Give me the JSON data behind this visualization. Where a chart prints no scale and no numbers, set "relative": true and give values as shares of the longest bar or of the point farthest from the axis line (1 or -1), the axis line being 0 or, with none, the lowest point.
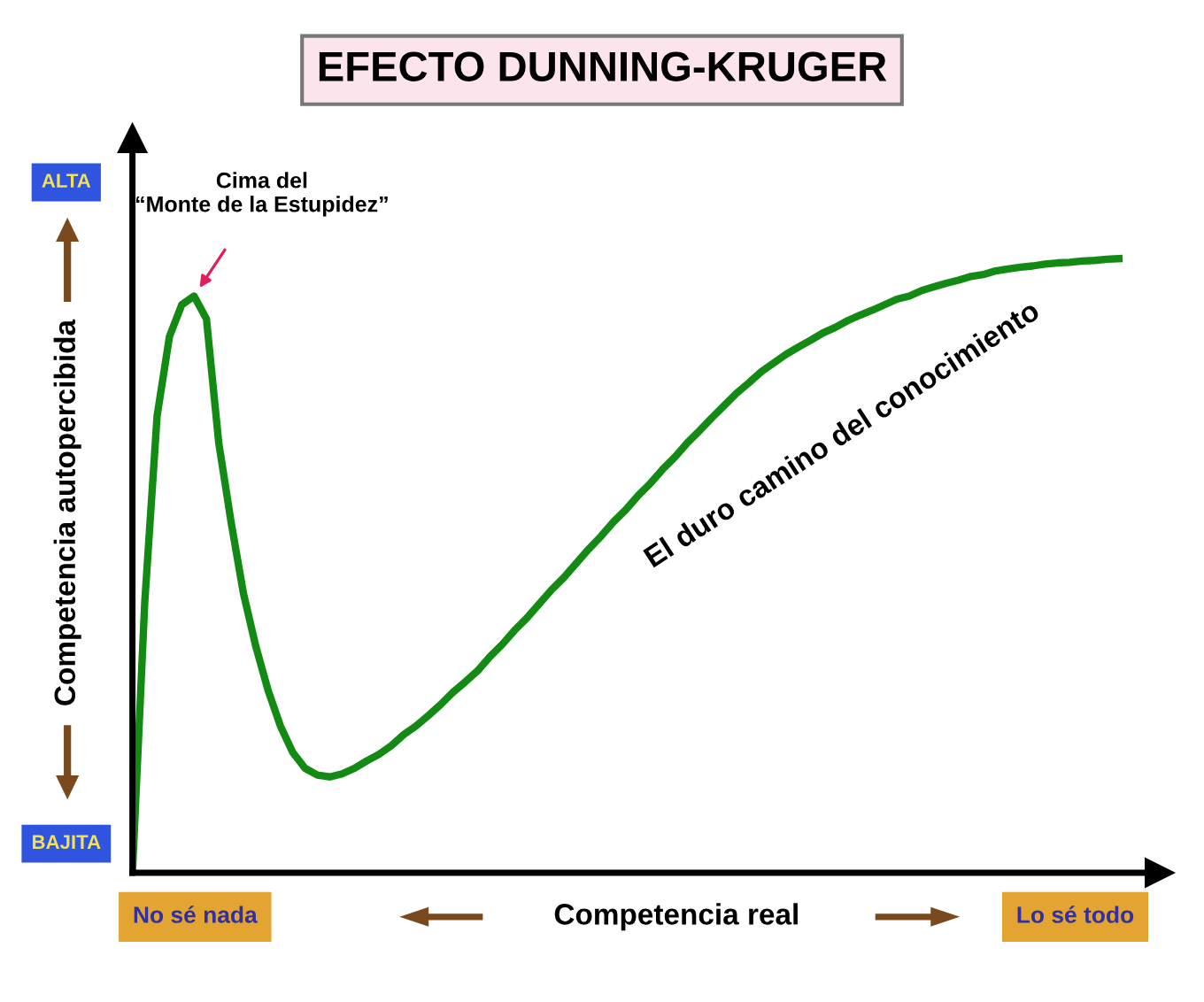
{
  "chart_data": {
    "type": "line",
    "title": "EFECTO DUNNING-KRUGER",
    "xlabel": "Competencia real",
    "ylabel": "Competencia autopercibida",
    "relative": true,
    "grid": false,
    "marker": "none",
    "line_style": "solid",
    "categories": [
      null,
      null,
      null,
      null,
      null,
      null,
      null,
      null,
      null,
      null,
      null,
      null,
      null,
      null,
      null,
      null,
      null,
      null,
      null,
      null,
      null,
      null,
      null,
      null,
      null,
      null,
      null,
      null,
      null,
      null,
      null,
      null,
      null,
      null,
      null,
      null,
      null,
      null,
      null,
      null,
      null,
      null,
      null,
      null,
      null,
      null,
      null,
      null,
      null,
      null,
      null,
      null,
      null,
      null,
      null,
      null,
      null,
      null,
      null,
      null,
      null,
      null,
      null,
      null,
      null,
      null,
      null,
      null,
      null,
      null,
      null,
      null,
      null,
      null,
      null,
      null,
      null,
      null,
      null,
      null,
      null
    ],
    "series": [
      {
        "color": "#138a13",
        "values": [
          0,
          0.441,
          0.744,
          0.873,
          0.925,
          0.939,
          0.902,
          0.7,
          0.571,
          0.455,
          0.369,
          0.297,
          0.239,
          0.196,
          0.17,
          0.159,
          0.156,
          0.161,
          0.17,
          0.182,
          0.193,
          0.207,
          0.225,
          0.239,
          0.256,
          0.274,
          0.294,
          0.311,
          0.329,
          0.352,
          0.372,
          0.395,
          0.415,
          0.438,
          0.461,
          0.481,
          0.504,
          0.527,
          0.548,
          0.571,
          0.591,
          0.614,
          0.634,
          0.657,
          0.677,
          0.7,
          0.72,
          0.741,
          0.761,
          0.781,
          0.798,
          0.816,
          0.83,
          0.844,
          0.856,
          0.867,
          0.879,
          0.888,
          0.899,
          0.908,
          0.916,
          0.925,
          0.934,
          0.939,
          0.948,
          0.954,
          0.96,
          0.965,
          0.971,
          0.974,
          0.98,
          0.983,
          0.986,
          0.988,
          0.991,
          0.993,
          0.994,
          0.996,
          0.997,
          0.999,
          1
        ]
      }
    ],
    "annotations": [
      "Cima del\n“Monte de la Estupidez”",
      "El duro camino del conocimiento",
      "ALTA",
      "BAJITA",
      "No sé nada",
      "Lo sé todo"
    ]
  }
}
